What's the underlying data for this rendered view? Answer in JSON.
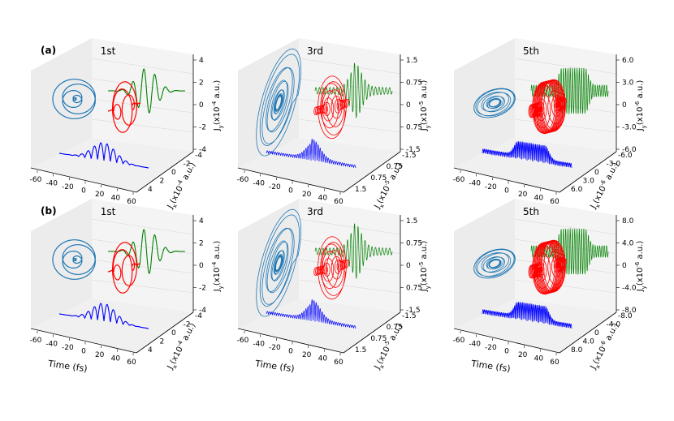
{
  "figure": {
    "row_labels": [
      "(a)",
      "(b)"
    ],
    "colors": {
      "jx_projection": "#1f77b4",
      "ellipse_3d": "#ff0000",
      "jy_time": "#008000",
      "jz_time": "#0000ff",
      "pane_light": "#f4f4f4",
      "pane_dark": "#ececec",
      "grid": "#d8d8d8"
    }
  },
  "chart_data": [
    {
      "type": "line",
      "panel": "a-1st",
      "title": "1st",
      "xlabel": "",
      "ylabel": "Jx(x10^-4 a.u.)",
      "zlabel": "Jy(x10^-4 a.u.)",
      "xticks": [
        "-60",
        "-40",
        "-20",
        "0",
        "20",
        "40",
        "60"
      ],
      "yticks": [
        "-4",
        "-2",
        "0",
        "2",
        "4"
      ],
      "zticks": [
        "-4",
        "-2",
        "0",
        "2",
        "4"
      ],
      "xlim": [
        -60,
        60
      ],
      "ylim": [
        -4,
        4
      ],
      "zlim": [
        -4,
        4
      ],
      "cycles": 7,
      "shape": "gaussian"
    },
    {
      "type": "line",
      "panel": "a-3rd",
      "title": "3rd",
      "xlabel": "",
      "ylabel": "Jx(x10^-5 a.u.)",
      "zlabel": "Jy(x10^-5 a.u.)",
      "xticks": [
        "-60",
        "-40",
        "-20",
        "0",
        "20",
        "40",
        "60"
      ],
      "yticks": [
        "-1.5",
        "0.75",
        "0.75",
        "1.5"
      ],
      "zticks": [
        "-1.5",
        "0.75",
        "0",
        "0.75",
        "1.5"
      ],
      "xlim": [
        -60,
        60
      ],
      "ylim": [
        -1.5,
        1.5
      ],
      "zlim": [
        -1.5,
        1.5
      ],
      "cycles": 22,
      "shape": "sharp"
    },
    {
      "type": "line",
      "panel": "a-5th",
      "title": "5th",
      "xlabel": "",
      "ylabel": "Jx(x10^-6 a.u.)",
      "zlabel": "Jy(x10^-6 a.u.)",
      "xticks": [
        "-60",
        "-40",
        "-20",
        "0",
        "20",
        "40",
        "60"
      ],
      "yticks": [
        "-6.0",
        "-3.0",
        "0",
        "3.0",
        "6.0"
      ],
      "zticks": [
        "-6.0",
        "-3.0",
        "0",
        "3.0",
        "6.0"
      ],
      "xlim": [
        -60,
        60
      ],
      "ylim": [
        -6,
        6
      ],
      "zlim": [
        -6,
        6
      ],
      "cycles": 34,
      "shape": "plateau"
    },
    {
      "type": "line",
      "panel": "b-1st",
      "title": "1st",
      "xlabel": "Time (fs)",
      "ylabel": "Jx(x10^-4 a.u.)",
      "zlabel": "Jy(x10^-4 a.u.)",
      "xticks": [
        "-60",
        "-40",
        "-20",
        "0",
        "20",
        "40",
        "60"
      ],
      "yticks": [
        "-4",
        "-2",
        "0",
        "2",
        "4"
      ],
      "zticks": [
        "-4",
        "-2",
        "0",
        "2",
        "4"
      ],
      "xlim": [
        -60,
        60
      ],
      "ylim": [
        -4,
        4
      ],
      "zlim": [
        -4,
        4
      ],
      "cycles": 7,
      "shape": "gaussian"
    },
    {
      "type": "line",
      "panel": "b-3rd",
      "title": "3rd",
      "xlabel": "Time (fs)",
      "ylabel": "Jx(x10^-5 a.u.)",
      "zlabel": "Jy(x10^-5 a.u.)",
      "xticks": [
        "-60",
        "-40",
        "-20",
        "0",
        "20",
        "40",
        "60"
      ],
      "yticks": [
        "-1.5",
        "0.75",
        "0.75",
        "1.5"
      ],
      "zticks": [
        "-1.5",
        "0.75",
        "0",
        "0.75",
        "1.5"
      ],
      "xlim": [
        -60,
        60
      ],
      "ylim": [
        -1.5,
        1.5
      ],
      "zlim": [
        -1.5,
        1.5
      ],
      "cycles": 22,
      "shape": "sharp"
    },
    {
      "type": "line",
      "panel": "b-5th",
      "title": "5th",
      "xlabel": "Time (fs)",
      "ylabel": "Jx(x10^-6 a.u.)",
      "zlabel": "Jy(x10^-6 a.u.)",
      "xticks": [
        "-60",
        "-40",
        "-20",
        "0",
        "20",
        "40",
        "60"
      ],
      "yticks": [
        "-8.0",
        "-4.0",
        "0",
        "4.0",
        "8.0"
      ],
      "zticks": [
        "-8.0",
        "-4.0",
        "0",
        "4.0",
        "8.0"
      ],
      "xlim": [
        -60,
        60
      ],
      "ylim": [
        -8,
        8
      ],
      "zlim": [
        -8,
        8
      ],
      "cycles": 34,
      "shape": "plateau"
    }
  ]
}
